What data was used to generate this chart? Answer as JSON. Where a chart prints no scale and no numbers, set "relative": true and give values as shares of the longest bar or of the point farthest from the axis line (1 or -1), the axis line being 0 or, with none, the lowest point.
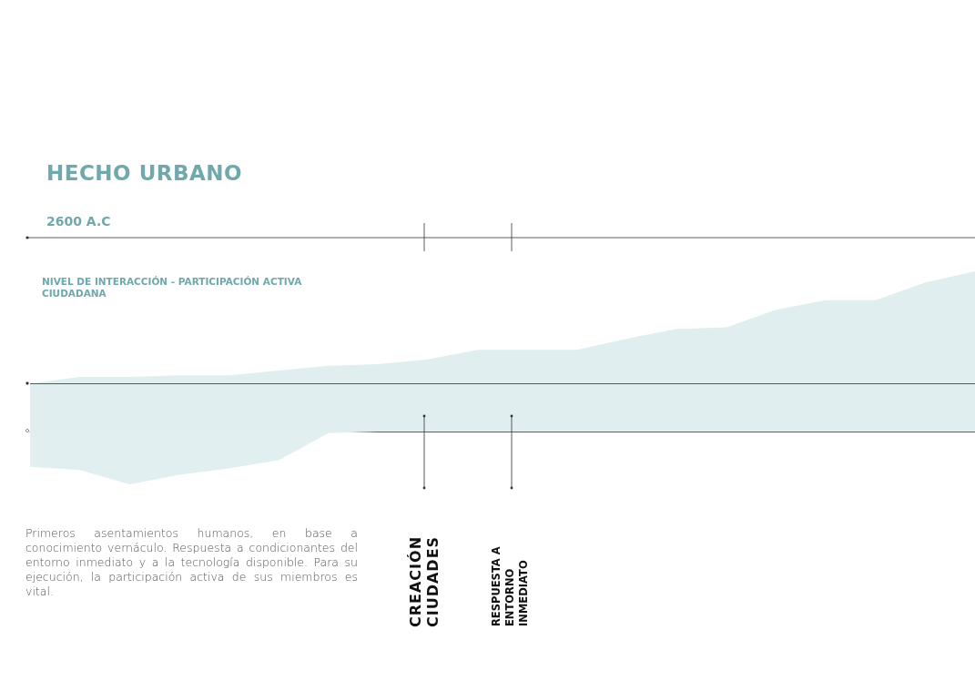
{
  "chart_data": {
    "type": "area",
    "relative": true,
    "title": "HECHO URBANO",
    "ylabel": "NIVEL DE INTERACCIÓN - PARTICIPACIÓN ACTIVA CIUDADANA",
    "categories": [
      null,
      null,
      null,
      null,
      null,
      null,
      null,
      null,
      null,
      null,
      null,
      null,
      null,
      null,
      null,
      null,
      null,
      null,
      null,
      null
    ],
    "series": [
      {
        "color": "#e1eef0",
        "values": [
          0.3,
          0.34,
          0.34,
          0.35,
          0.35,
          0.38,
          0.41,
          0.42,
          0.45,
          0.51,
          0.51,
          0.51,
          0.58,
          0.64,
          0.65,
          0.76,
          0.82,
          0.82,
          0.93,
          1
        ]
      },
      {
        "color": "#e2eff1",
        "values": [
          -0.22,
          -0.24,
          -0.33,
          -0.27,
          -0.23,
          -0.18,
          -0.01,
          0,
          0,
          0,
          0,
          0,
          0,
          0,
          0,
          0,
          0,
          0,
          0,
          0
        ]
      }
    ],
    "ref_lines": [
      {
        "axis": "y",
        "value": 0.3,
        "color": "#333333"
      }
    ],
    "annotations": [
      "2600 A.C",
      "Primeros asentamientos humanos, en base a conocimiento vernáculo. Respuesta a condicionantes del entorno inmediato y a la tecnología disponible. Para su ejecución, la participación activa de sus miembros es vital.",
      "CREACIÓN CIUDADES",
      "RESPUESTA A ENTORNO INMEDIATO"
    ],
    "grid": false
  }
}
